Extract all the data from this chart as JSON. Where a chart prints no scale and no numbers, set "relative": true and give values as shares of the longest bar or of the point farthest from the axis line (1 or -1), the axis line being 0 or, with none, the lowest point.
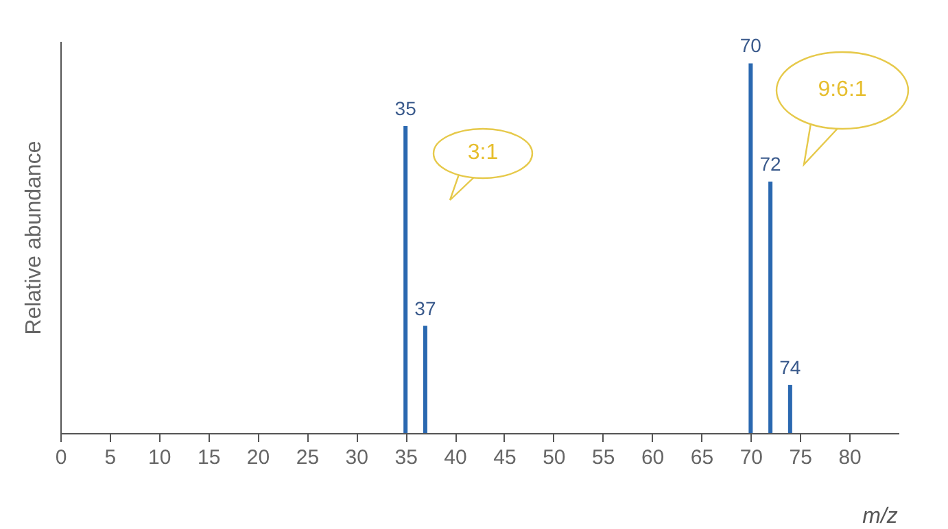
{
  "chart_data": {
    "type": "bar",
    "xlabel": "m/z",
    "ylabel": "Relative abundance",
    "relative": true,
    "x": [
      35,
      37,
      70,
      72,
      74
    ],
    "values": [
      0.83,
      0.29,
      1,
      0.68,
      0.13
    ],
    "color": "#2a68b0",
    "xlim": [
      0,
      85
    ],
    "xticks": [
      0,
      5,
      10,
      15,
      20,
      25,
      30,
      35,
      40,
      45,
      50,
      55,
      60,
      65,
      70,
      75,
      80
    ],
    "annotations": [
      "3:1",
      "9:6:1",
      {
        "text": "35",
        "x": 35,
        "y": 0.83
      },
      {
        "text": "37",
        "x": 37,
        "y": 0.29
      },
      {
        "text": "70",
        "x": 70,
        "y": 1
      },
      {
        "text": "72",
        "x": 72,
        "y": 0.68
      },
      {
        "text": "74",
        "x": 74,
        "y": 0.13
      }
    ],
    "grid": false
  }
}
